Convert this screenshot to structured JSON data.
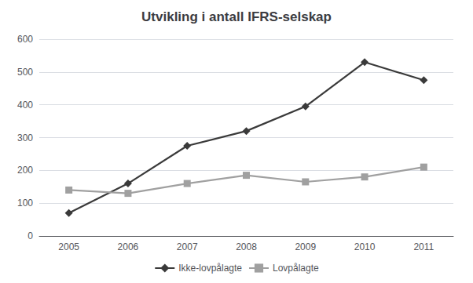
{
  "chart_data": {
    "type": "line",
    "title": "Utvikling i antall IFRS-selskap",
    "categories": [
      "2005",
      "2006",
      "2007",
      "2008",
      "2009",
      "2010",
      "2011"
    ],
    "series": [
      {
        "name": "Ikke-lovpålagte",
        "color": "#3a3a3a",
        "marker": "diamond",
        "values": [
          70,
          160,
          275,
          320,
          395,
          530,
          475
        ]
      },
      {
        "name": "Lovpålagte",
        "color": "#a0a0a0",
        "marker": "square",
        "values": [
          140,
          130,
          160,
          185,
          165,
          180,
          210
        ]
      }
    ],
    "ylim": [
      0,
      600
    ],
    "yticks": [
      0,
      100,
      200,
      300,
      400,
      500,
      600
    ],
    "grid": true,
    "legend": "bottom"
  }
}
